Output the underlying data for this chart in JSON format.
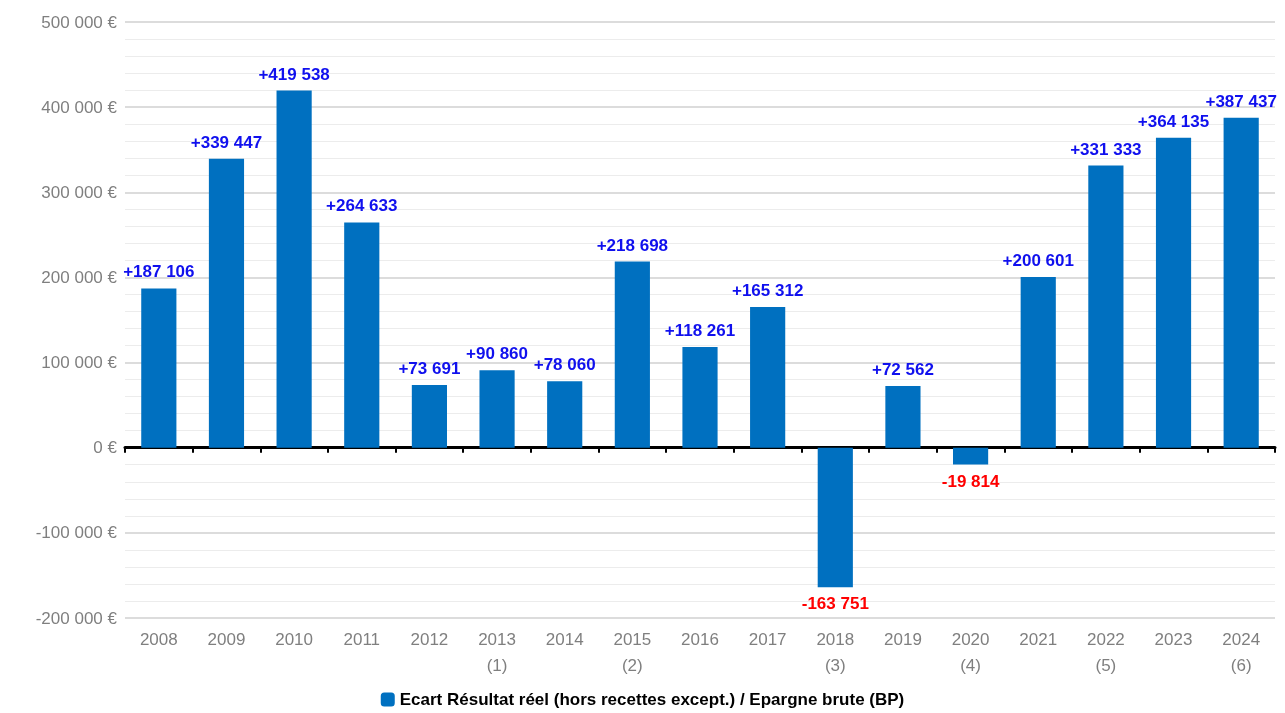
{
  "chart_data": {
    "type": "bar",
    "categories": [
      "2008",
      "2009",
      "2010",
      "2011",
      "2012",
      "2013\n(1)",
      "2014",
      "2015\n(2)",
      "2016",
      "2017",
      "2018\n(3)",
      "2019",
      "2020\n(4)",
      "2021",
      "2022\n(5)",
      "2023",
      "2024\n(6)"
    ],
    "series": [
      {
        "name": "Ecart Résultat réel (hors recettes except.) / Epargne brute (BP)",
        "color": "#0070c0",
        "values": [
          187106,
          339447,
          419538,
          264633,
          73691,
          90860,
          78060,
          218698,
          118261,
          165312,
          -163751,
          72562,
          -19814,
          200601,
          331333,
          364135,
          387437
        ],
        "value_labels": [
          "+187 106",
          "+339 447",
          "+419 538",
          "+264 633",
          "+73 691",
          "+90 860",
          "+78 060",
          "+218 698",
          "+118 261",
          "+165 312",
          "-163 751",
          "+72 562",
          "-19 814",
          "+200 601",
          "+331 333",
          "+364 135",
          "+387 437"
        ]
      }
    ],
    "ylim": [
      -200000,
      500000
    ],
    "yticks": [
      {
        "value": -200000,
        "label": "-200 000 €"
      },
      {
        "value": -100000,
        "label": "-100 000 €"
      },
      {
        "value": 0,
        "label": "0 €"
      },
      {
        "value": 100000,
        "label": "100 000 €"
      },
      {
        "value": 200000,
        "label": "200 000 €"
      },
      {
        "value": 300000,
        "label": "300 000 €"
      },
      {
        "value": 400000,
        "label": "400 000 €"
      },
      {
        "value": 500000,
        "label": "500 000 €"
      }
    ],
    "grid": "y",
    "legend": "bottom"
  }
}
